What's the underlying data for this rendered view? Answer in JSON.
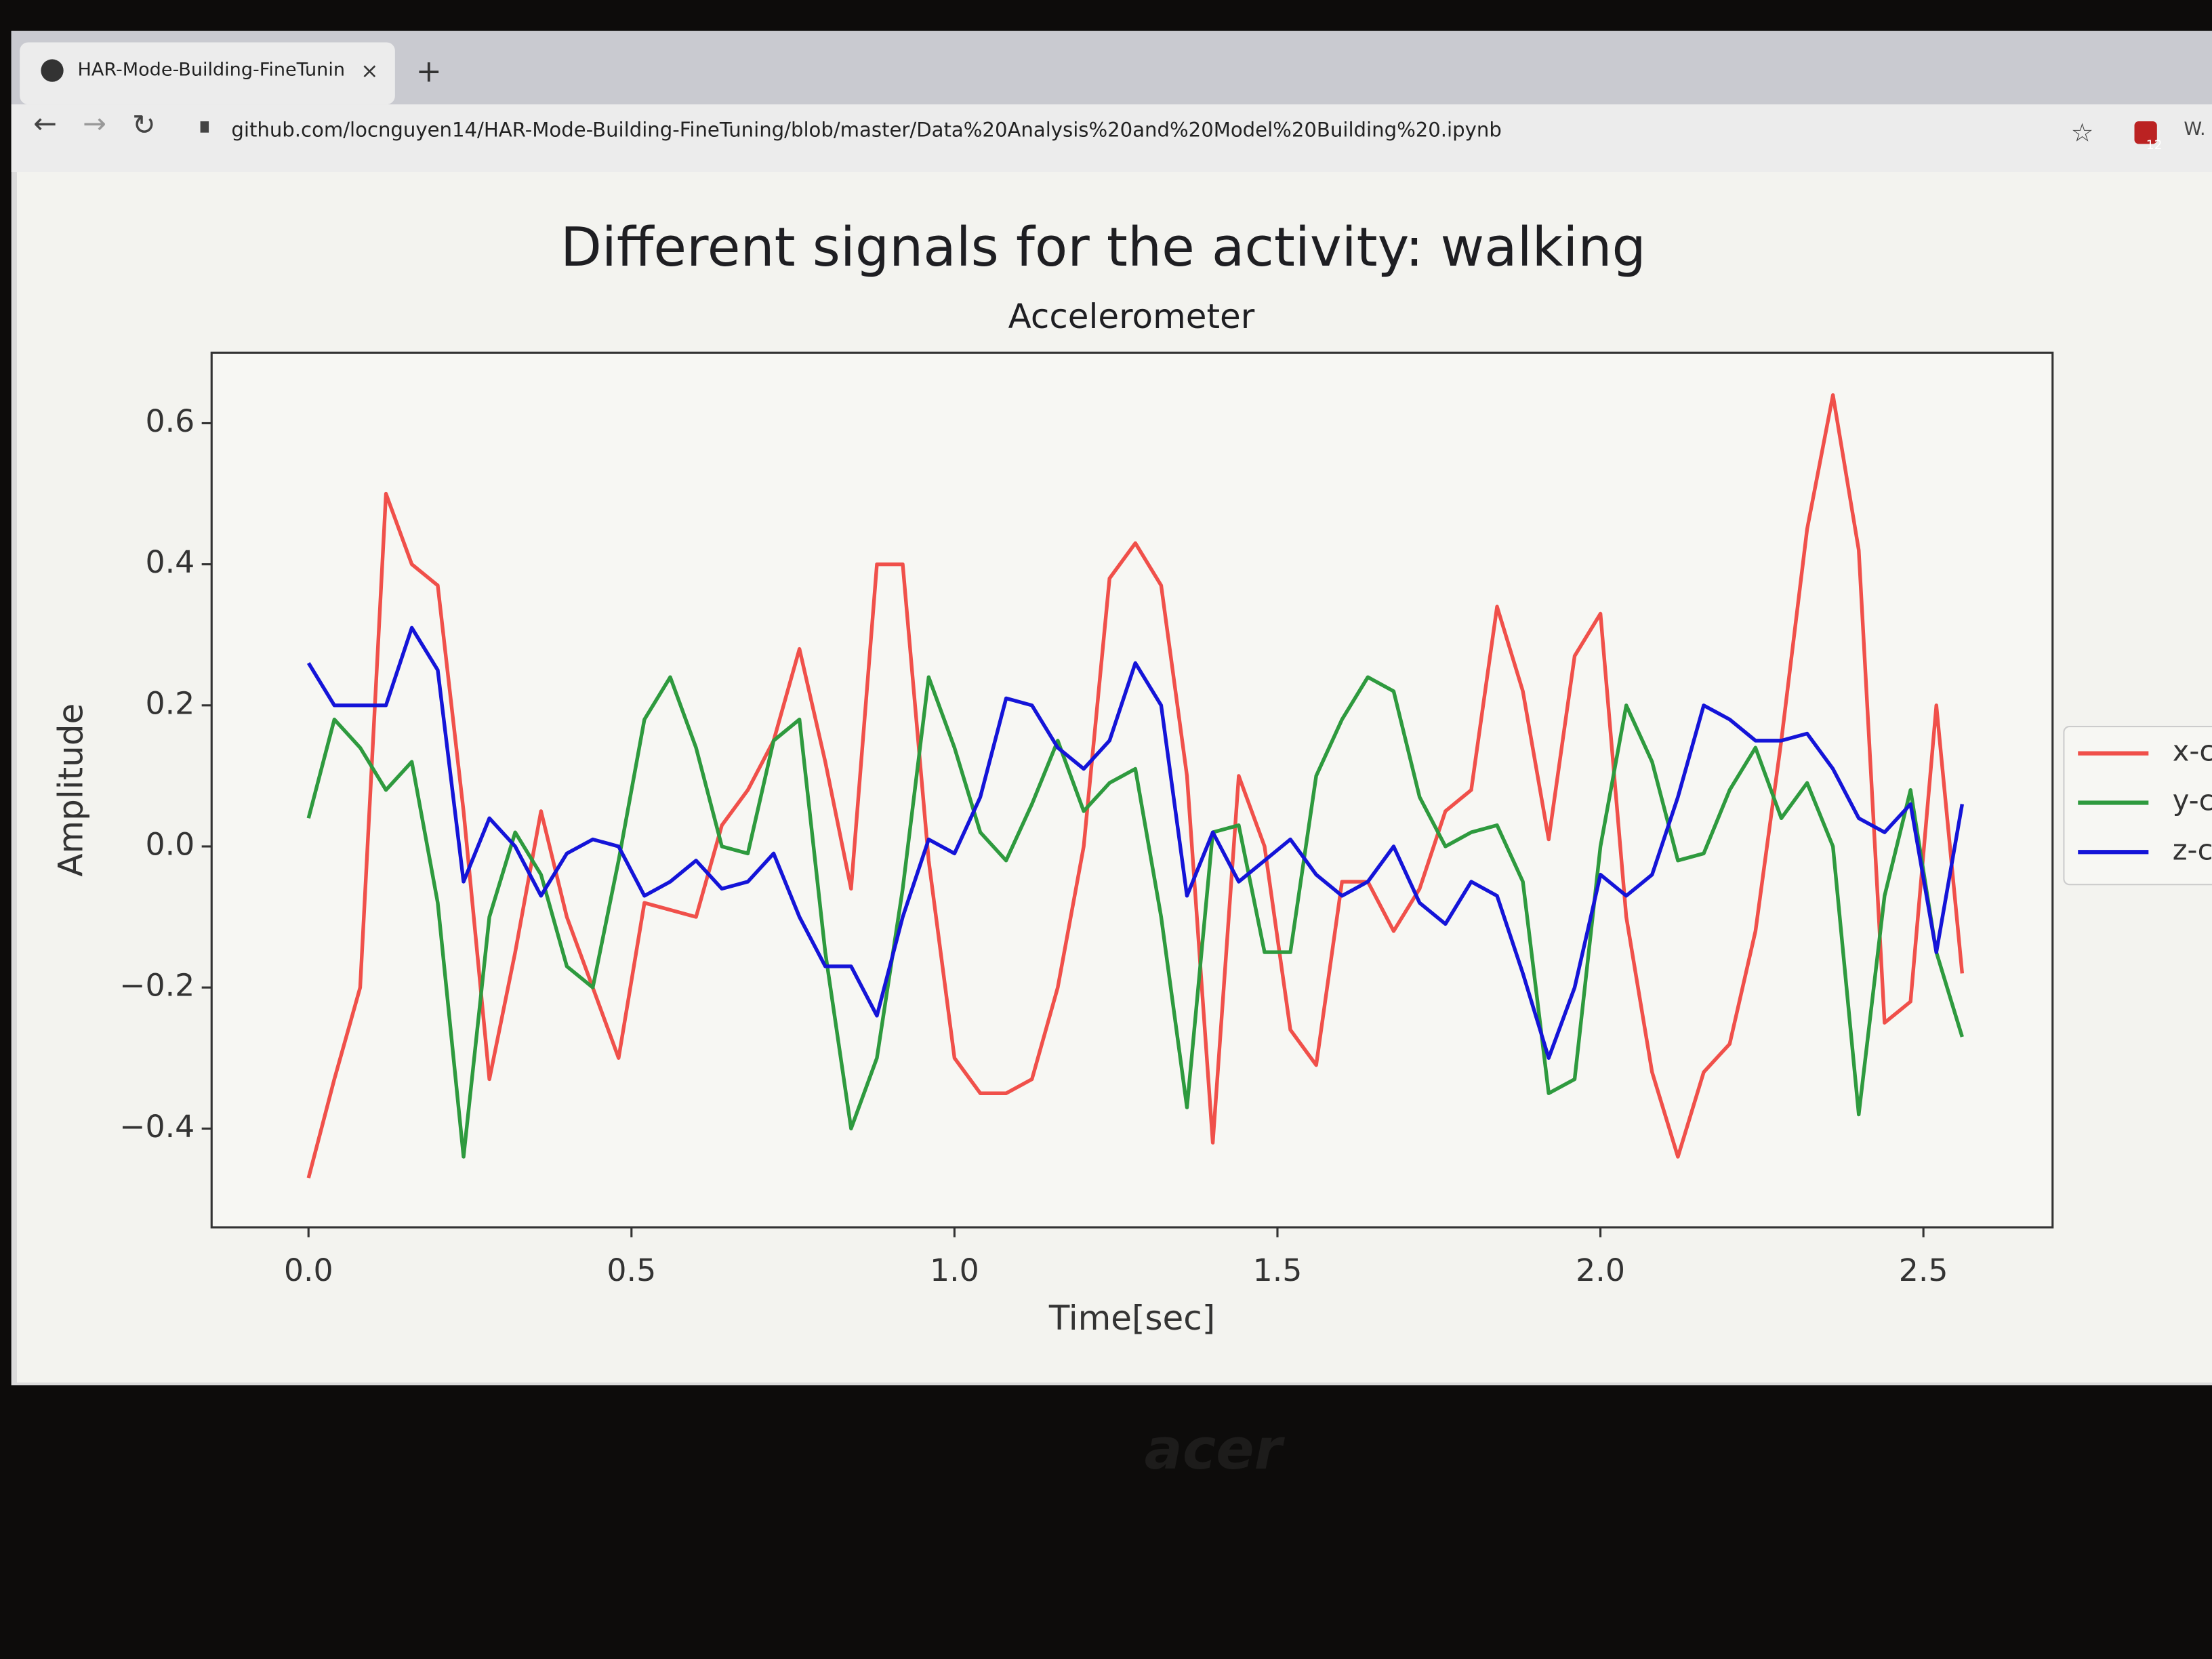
{
  "browser": {
    "tab_title": "HAR-Mode-Building-FineTunin",
    "url": "github.com/locnguyen14/HAR-Mode-Building-FineTuning/blob/master/Data%20Analysis%20and%20Model%20Building%20.ipynb",
    "profile": "W.",
    "extension_badge": "12"
  },
  "bezel_brand": "acer",
  "chart_data": {
    "type": "line",
    "title": "Different signals for the activity: walking",
    "subtitle": "Accelerometer",
    "xlabel": "Time[sec]",
    "ylabel": "Amplitude",
    "x": [
      0,
      0.04,
      0.08,
      0.12,
      0.16,
      0.2,
      0.24,
      0.28,
      0.32,
      0.36,
      0.4,
      0.44,
      0.48,
      0.52,
      0.56,
      0.6,
      0.64,
      0.68,
      0.72,
      0.76,
      0.8,
      0.84,
      0.88,
      0.92,
      0.96,
      1.0,
      1.04,
      1.08,
      1.12,
      1.16,
      1.2,
      1.24,
      1.28,
      1.32,
      1.36,
      1.4,
      1.44,
      1.48,
      1.52,
      1.56,
      1.6,
      1.64,
      1.68,
      1.72,
      1.76,
      1.8,
      1.84,
      1.88,
      1.92,
      1.96,
      2.0,
      2.04,
      2.08,
      2.12,
      2.16,
      2.2,
      2.24,
      2.28,
      2.32,
      2.36,
      2.4,
      2.44,
      2.48,
      2.52,
      2.56
    ],
    "series": [
      {
        "name": "x-c",
        "color": "#f0504a",
        "values": [
          -0.47,
          -0.33,
          -0.2,
          0.5,
          0.4,
          0.37,
          0.05,
          -0.33,
          -0.15,
          0.05,
          -0.1,
          -0.2,
          -0.3,
          -0.08,
          -0.09,
          -0.1,
          0.03,
          0.08,
          0.15,
          0.28,
          0.12,
          -0.06,
          0.4,
          0.4,
          -0.02,
          -0.3,
          -0.35,
          -0.35,
          -0.33,
          -0.2,
          0.0,
          0.38,
          0.43,
          0.37,
          0.1,
          -0.42,
          0.1,
          0.0,
          -0.26,
          -0.31,
          -0.05,
          -0.05,
          -0.12,
          -0.06,
          0.05,
          0.08,
          0.34,
          0.22,
          0.01,
          0.27,
          0.33,
          -0.1,
          -0.32,
          -0.44,
          -0.32,
          -0.28,
          -0.12,
          0.15,
          0.45,
          0.64,
          0.42,
          -0.25,
          -0.22,
          0.2,
          -0.18
        ]
      },
      {
        "name": "y-c",
        "color": "#2e9a3e",
        "values": [
          0.04,
          0.18,
          0.14,
          0.08,
          0.12,
          -0.08,
          -0.44,
          -0.1,
          0.02,
          -0.04,
          -0.17,
          -0.2,
          -0.02,
          0.18,
          0.24,
          0.14,
          0.0,
          -0.01,
          0.15,
          0.18,
          -0.15,
          -0.4,
          -0.3,
          -0.06,
          0.24,
          0.14,
          0.02,
          -0.02,
          0.06,
          0.15,
          0.05,
          0.09,
          0.11,
          -0.1,
          -0.37,
          0.02,
          0.03,
          -0.15,
          -0.15,
          0.1,
          0.18,
          0.24,
          0.22,
          0.07,
          0.0,
          0.02,
          0.03,
          -0.05,
          -0.35,
          -0.33,
          0.0,
          0.2,
          0.12,
          -0.02,
          -0.01,
          0.08,
          0.14,
          0.04,
          0.09,
          0.0,
          -0.38,
          -0.07,
          0.08,
          -0.15,
          -0.27
        ]
      },
      {
        "name": "z-c",
        "color": "#1414d8",
        "values": [
          0.26,
          0.2,
          0.2,
          0.2,
          0.31,
          0.25,
          -0.05,
          0.04,
          0.0,
          -0.07,
          -0.01,
          0.01,
          0.0,
          -0.07,
          -0.05,
          -0.02,
          -0.06,
          -0.05,
          -0.01,
          -0.1,
          -0.17,
          -0.17,
          -0.24,
          -0.1,
          0.01,
          -0.01,
          0.07,
          0.21,
          0.2,
          0.14,
          0.11,
          0.15,
          0.26,
          0.2,
          -0.07,
          0.02,
          -0.05,
          -0.02,
          0.01,
          -0.04,
          -0.07,
          -0.05,
          0.0,
          -0.08,
          -0.11,
          -0.05,
          -0.07,
          -0.18,
          -0.3,
          -0.2,
          -0.04,
          -0.07,
          -0.04,
          0.07,
          0.2,
          0.18,
          0.15,
          0.15,
          0.16,
          0.11,
          0.04,
          0.02,
          0.06,
          -0.15,
          0.06
        ]
      }
    ],
    "xlim": [
      -0.15,
      2.7
    ],
    "ylim": [
      -0.54,
      0.7
    ],
    "xticks": [
      {
        "value": 0,
        "label": "0.0"
      },
      0.5,
      {
        "value": 1,
        "label": "1.0"
      },
      1.5,
      {
        "value": 2,
        "label": "2.0"
      },
      2.5
    ],
    "yticks": [
      {
        "value": -0.4,
        "label": "−0.4"
      },
      {
        "value": -0.2,
        "label": "−0.2"
      },
      {
        "value": 0,
        "label": "0.0"
      },
      0.2,
      0.4,
      0.6
    ],
    "legend": "right"
  }
}
